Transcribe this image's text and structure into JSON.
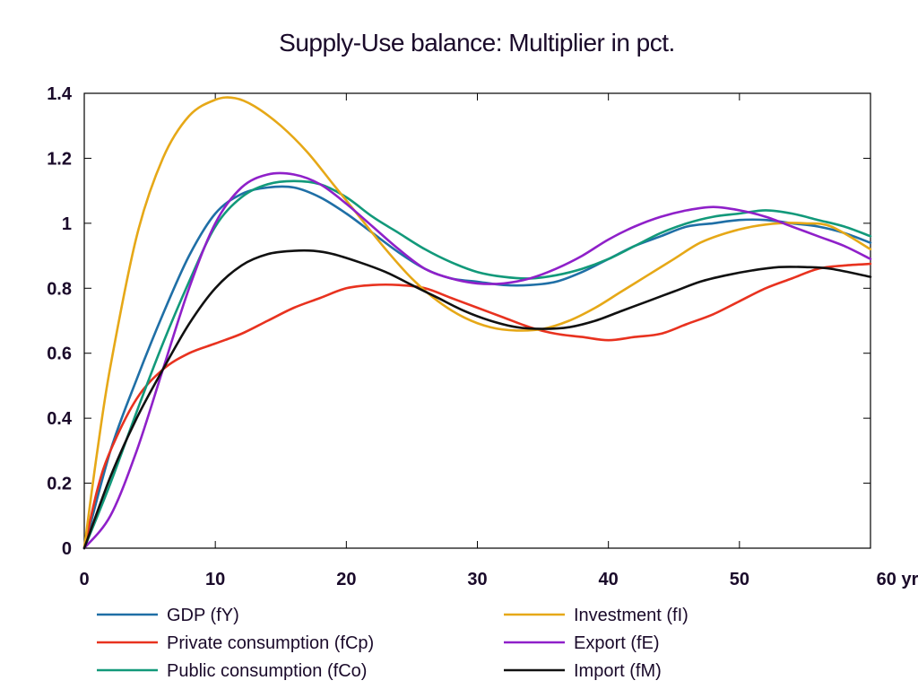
{
  "chart_data": {
    "type": "line",
    "title": "Supply-Use balance: Multiplier in pct.",
    "xlabel": "",
    "ylabel": "",
    "x_unit_label": "yr",
    "xlim": [
      0,
      60
    ],
    "ylim": [
      0,
      1.4
    ],
    "x_ticks": [
      0,
      10,
      20,
      30,
      40,
      50,
      60
    ],
    "y_ticks": [
      0,
      0.2,
      0.4,
      0.6,
      0.8,
      1,
      1.2,
      1.4
    ],
    "x_tick_labels": [
      "0",
      "10",
      "20",
      "30",
      "40",
      "50",
      "60 yr"
    ],
    "y_tick_labels": [
      "0",
      "0.2",
      "0.4",
      "0.6",
      "0.8",
      "1",
      "1.2",
      "1.4"
    ],
    "grid": false,
    "legend_position": "bottom",
    "series": [
      {
        "name": "GDP (fY)",
        "color": "#1f6fa6",
        "x": [
          0,
          2,
          4,
          6,
          8,
          10,
          12,
          14,
          16,
          18,
          20,
          22,
          24,
          26,
          28,
          30,
          32,
          34,
          36,
          38,
          40,
          42,
          44,
          46,
          48,
          50,
          52,
          54,
          56,
          58,
          60
        ],
        "y": [
          0,
          0.3,
          0.52,
          0.72,
          0.9,
          1.03,
          1.09,
          1.11,
          1.11,
          1.08,
          1.03,
          0.97,
          0.91,
          0.86,
          0.83,
          0.82,
          0.81,
          0.81,
          0.82,
          0.85,
          0.89,
          0.93,
          0.96,
          0.99,
          1.0,
          1.01,
          1.01,
          1.0,
          0.99,
          0.97,
          0.94
        ]
      },
      {
        "name": "Private consumption (fCp)",
        "color": "#e8321f",
        "x": [
          0,
          1,
          2,
          4,
          6,
          8,
          10,
          12,
          14,
          16,
          18,
          20,
          22,
          24,
          26,
          28,
          30,
          32,
          34,
          36,
          38,
          40,
          42,
          44,
          46,
          48,
          50,
          52,
          54,
          56,
          58,
          60
        ],
        "y": [
          0,
          0.18,
          0.3,
          0.46,
          0.55,
          0.6,
          0.63,
          0.66,
          0.7,
          0.74,
          0.77,
          0.8,
          0.81,
          0.81,
          0.8,
          0.77,
          0.74,
          0.71,
          0.68,
          0.66,
          0.65,
          0.64,
          0.65,
          0.66,
          0.69,
          0.72,
          0.76,
          0.8,
          0.83,
          0.86,
          0.87,
          0.875
        ]
      },
      {
        "name": "Public consumption (fCo)",
        "color": "#12997a",
        "x": [
          0,
          2,
          4,
          6,
          8,
          10,
          12,
          14,
          16,
          18,
          20,
          22,
          24,
          26,
          28,
          30,
          32,
          34,
          36,
          38,
          40,
          42,
          44,
          46,
          48,
          50,
          52,
          54,
          56,
          58,
          60
        ],
        "y": [
          0,
          0.2,
          0.42,
          0.63,
          0.82,
          0.99,
          1.08,
          1.12,
          1.13,
          1.12,
          1.08,
          1.02,
          0.97,
          0.92,
          0.88,
          0.85,
          0.835,
          0.83,
          0.84,
          0.86,
          0.89,
          0.93,
          0.97,
          1.0,
          1.02,
          1.03,
          1.04,
          1.03,
          1.01,
          0.99,
          0.96
        ]
      },
      {
        "name": "Investment (fI)",
        "color": "#e6a817",
        "x": [
          0,
          1,
          2,
          4,
          6,
          8,
          10,
          11.5,
          13,
          15,
          17,
          19,
          21,
          23,
          25,
          27,
          29,
          31,
          33,
          35,
          37,
          39,
          41,
          43,
          45,
          47,
          49,
          51,
          53,
          55,
          57,
          60
        ],
        "y": [
          0,
          0.3,
          0.56,
          0.96,
          1.2,
          1.33,
          1.38,
          1.385,
          1.36,
          1.3,
          1.22,
          1.12,
          1.02,
          0.92,
          0.83,
          0.76,
          0.71,
          0.68,
          0.67,
          0.675,
          0.7,
          0.74,
          0.79,
          0.84,
          0.89,
          0.94,
          0.97,
          0.99,
          1.0,
          1.0,
          0.99,
          0.92
        ]
      },
      {
        "name": "Export (fE)",
        "color": "#8f20c9",
        "x": [
          0,
          2,
          4,
          6,
          8,
          10,
          12,
          14,
          16,
          18,
          20,
          22,
          24,
          26,
          28,
          30,
          32,
          34,
          36,
          38,
          40,
          42,
          44,
          46,
          48,
          50,
          52,
          54,
          56,
          58,
          60
        ],
        "y": [
          0,
          0.1,
          0.3,
          0.55,
          0.8,
          1.0,
          1.11,
          1.15,
          1.15,
          1.12,
          1.06,
          0.99,
          0.92,
          0.86,
          0.83,
          0.815,
          0.815,
          0.83,
          0.86,
          0.9,
          0.95,
          0.99,
          1.02,
          1.04,
          1.05,
          1.04,
          1.02,
          0.99,
          0.96,
          0.93,
          0.89
        ]
      },
      {
        "name": "Import (fM)",
        "color": "#111111",
        "x": [
          0,
          2,
          4,
          6,
          8,
          10,
          12,
          14,
          16,
          17.5,
          19,
          21,
          23,
          25,
          27,
          29,
          31,
          33,
          35,
          37,
          39,
          41,
          43,
          45,
          47,
          49,
          51,
          53,
          55,
          57,
          60
        ],
        "y": [
          0,
          0.22,
          0.4,
          0.55,
          0.69,
          0.8,
          0.87,
          0.905,
          0.915,
          0.915,
          0.905,
          0.88,
          0.85,
          0.81,
          0.77,
          0.73,
          0.7,
          0.68,
          0.675,
          0.68,
          0.7,
          0.73,
          0.76,
          0.79,
          0.82,
          0.84,
          0.855,
          0.865,
          0.865,
          0.86,
          0.835
        ]
      }
    ]
  }
}
